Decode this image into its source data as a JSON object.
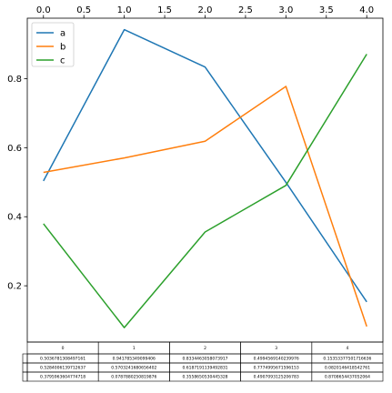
{
  "chart_data": {
    "type": "line",
    "x": [
      0,
      1,
      2,
      3,
      4
    ],
    "xlim": [
      -0.2,
      4.2
    ],
    "ylim": [
      0.037,
      0.975
    ],
    "xticks": [
      "0.0",
      "0.5",
      "1.0",
      "1.5",
      "2.0",
      "2.5",
      "3.0",
      "3.5",
      "4.0"
    ],
    "xtick_values": [
      0,
      0.5,
      1,
      1.5,
      2,
      2.5,
      3,
      3.5,
      4
    ],
    "xaxis_position": "top",
    "yticks": [
      "0.2",
      "0.4",
      "0.6",
      "0.8"
    ],
    "ytick_values": [
      0.2,
      0.4,
      0.6,
      0.8
    ],
    "grid": false,
    "legend_position": "top-left",
    "series": [
      {
        "name": "a",
        "color": "#1f77b4",
        "values": [
          0.5036781308497161,
          0.941785349099406,
          0.8334463058073917,
          0.4994569140239976,
          0.15353377501716636
        ]
      },
      {
        "name": "b",
        "color": "#ff7f0e",
        "values": [
          0.5284006139712637,
          0.5703241680656402,
          0.6187191139492831,
          0.7774995671596153,
          0.0820146418542761
        ]
      },
      {
        "name": "c",
        "color": "#2ca02c",
        "values": [
          0.3795963604774718,
          0.0787880250819876,
          0.3558650530445328,
          0.4907093125206783,
          0.8708654437052064
        ]
      }
    ],
    "table": {
      "col_labels": [
        "0",
        "1",
        "2",
        "3",
        "4"
      ],
      "rows": [
        [
          "0.5036781308497161",
          "0.941785349099406",
          "0.8334463058073917",
          "0.4994569140239976",
          "0.15353377501716636"
        ],
        [
          "0.5284006139712637",
          "0.5703241680656402",
          "0.6187191139492831",
          "0.7774995671596153",
          "0.0820146418542761"
        ],
        [
          "0.3795963604774718",
          "0.0787880250819876",
          "0.3558650530445328",
          "0.4907093125206783",
          "0.8708654437052064"
        ]
      ]
    }
  }
}
